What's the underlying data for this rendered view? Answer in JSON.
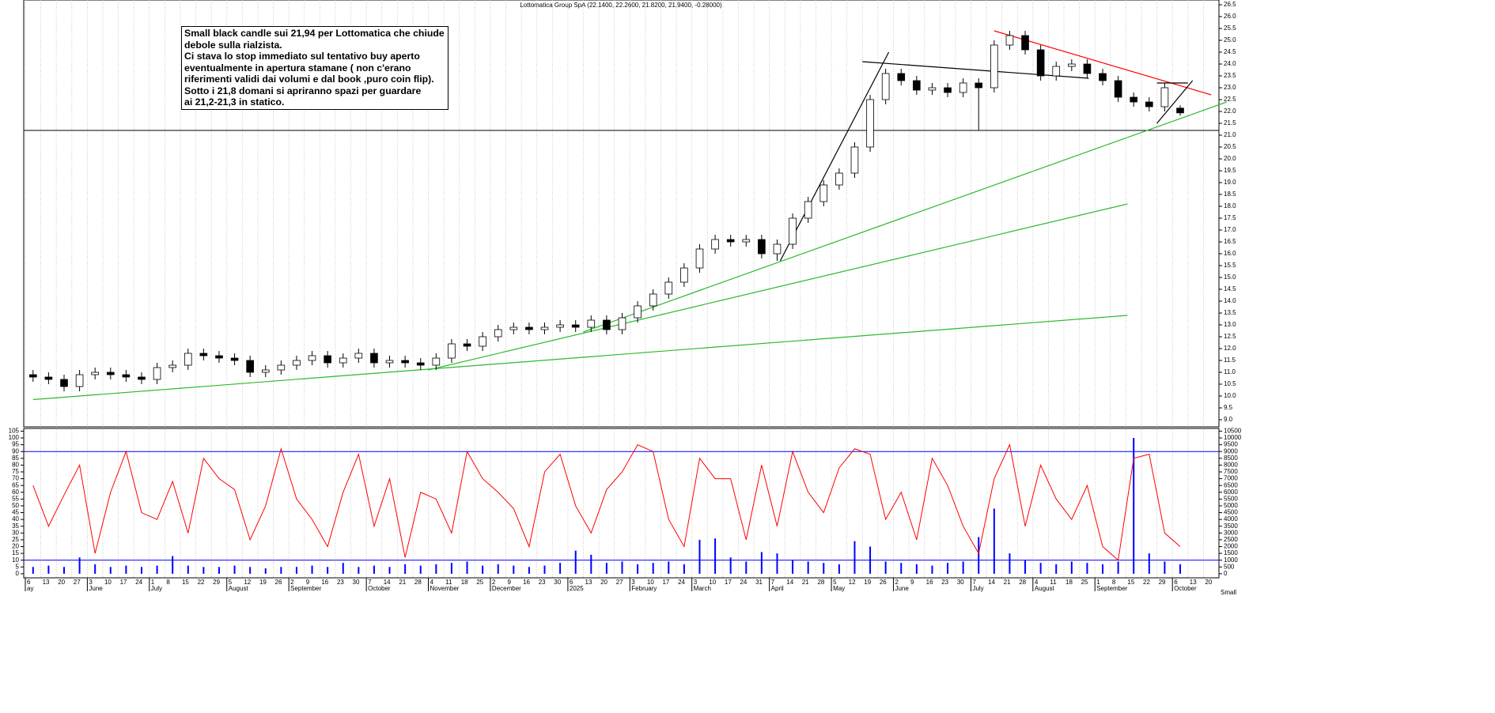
{
  "chart_data": [
    {
      "type": "candlestick",
      "title": "Lottomatica Group SpA (22.1400, 22.2600, 21.8200, 21.9400, -0.28000)",
      "annotation": [
        "Small black candle sui 21,94 per Lottomatica che chiude",
        "debole sulla rialzista.",
        "Ci stava lo stop immediato sul tentativo buy aperto",
        "eventualmente in apertura stamane ( non c'erano",
        "riferimenti validi dai volumi e dal book ,puro coin flip).",
        "Sotto i 21,8 domani si apriranno spazi per guardare",
        "ai 21,2-21,3 in statico."
      ],
      "categories": [
        "6",
        "13",
        "20",
        "27",
        "3",
        "10",
        "17",
        "24",
        "1",
        "8",
        "15",
        "22",
        "29",
        "5",
        "12",
        "19",
        "26",
        "2",
        "9",
        "16",
        "23",
        "30",
        "7",
        "14",
        "21",
        "28",
        "4",
        "11",
        "18",
        "25",
        "2",
        "9",
        "16",
        "23",
        "30",
        "6",
        "13",
        "20",
        "27",
        "3",
        "10",
        "17",
        "24",
        "3",
        "10",
        "17",
        "24",
        "31",
        "7",
        "14",
        "21",
        "28",
        "5",
        "12",
        "19",
        "26",
        "2",
        "9",
        "16",
        "23",
        "30",
        "7",
        "14",
        "21",
        "28",
        "4",
        "11",
        "18",
        "25",
        "1",
        "8",
        "15",
        "22",
        "29",
        "6",
        "13",
        "20"
      ],
      "month_ticks": [
        {
          "value": 0,
          "label": "ay"
        },
        {
          "value": 4,
          "label": "June"
        },
        {
          "value": 8,
          "label": "July"
        },
        {
          "value": 13,
          "label": "August"
        },
        {
          "value": 17,
          "label": "September"
        },
        {
          "value": 22,
          "label": "October"
        },
        {
          "value": 26,
          "label": "November"
        },
        {
          "value": 30,
          "label": "December"
        },
        {
          "value": 35,
          "label": "2025"
        },
        {
          "value": 39,
          "label": "February"
        },
        {
          "value": 43,
          "label": "March"
        },
        {
          "value": 48,
          "label": "April"
        },
        {
          "value": 52,
          "label": "May"
        },
        {
          "value": 56,
          "label": "June"
        },
        {
          "value": 61,
          "label": "July"
        },
        {
          "value": 65,
          "label": "August"
        },
        {
          "value": 69,
          "label": "September"
        },
        {
          "value": 74,
          "label": "October"
        }
      ],
      "open": [
        10.9,
        10.8,
        10.7,
        10.4,
        10.9,
        11.0,
        10.9,
        10.8,
        10.7,
        11.2,
        11.3,
        11.8,
        11.7,
        11.6,
        11.5,
        11.0,
        11.1,
        11.3,
        11.5,
        11.7,
        11.4,
        11.6,
        11.8,
        11.4,
        11.5,
        11.4,
        11.3,
        11.6,
        12.2,
        12.1,
        12.5,
        12.8,
        12.9,
        12.8,
        12.9,
        13.0,
        12.9,
        13.2,
        12.8,
        13.3,
        13.8,
        14.3,
        14.8,
        15.4,
        16.2,
        16.6,
        16.5,
        16.6,
        16.0,
        16.4,
        17.5,
        18.2,
        18.9,
        19.4,
        20.5,
        22.5,
        23.6,
        23.3,
        22.9,
        23.0,
        22.8,
        23.2,
        23.0,
        24.8,
        25.2,
        24.6,
        23.5,
        23.9,
        24.0,
        23.6,
        23.3,
        22.6,
        22.4,
        22.2,
        22.14,
        null,
        null
      ],
      "high": [
        11.1,
        11.0,
        10.9,
        11.1,
        11.2,
        11.2,
        11.1,
        11.0,
        11.4,
        11.5,
        12.0,
        12.0,
        11.9,
        11.8,
        11.7,
        11.3,
        11.5,
        11.7,
        11.9,
        11.9,
        11.8,
        12.0,
        12.0,
        11.7,
        11.7,
        11.6,
        11.8,
        12.4,
        12.4,
        12.7,
        13.0,
        13.1,
        13.1,
        13.1,
        13.2,
        13.2,
        13.4,
        13.4,
        13.5,
        14.0,
        14.5,
        15.0,
        15.6,
        16.4,
        16.8,
        16.8,
        16.8,
        16.8,
        16.6,
        17.7,
        18.4,
        19.1,
        19.6,
        20.7,
        22.7,
        23.8,
        23.8,
        23.5,
        23.2,
        23.2,
        23.4,
        23.4,
        25.0,
        25.4,
        25.4,
        24.8,
        24.1,
        24.2,
        24.2,
        23.8,
        23.5,
        22.8,
        22.6,
        23.2,
        22.26,
        null,
        null
      ],
      "low": [
        10.6,
        10.5,
        10.2,
        10.2,
        10.7,
        10.7,
        10.6,
        10.5,
        10.5,
        11.0,
        11.1,
        11.5,
        11.4,
        11.3,
        10.8,
        10.8,
        10.9,
        11.1,
        11.3,
        11.2,
        11.2,
        11.4,
        11.2,
        11.2,
        11.2,
        11.1,
        11.1,
        11.4,
        11.9,
        11.9,
        12.3,
        12.6,
        12.6,
        12.6,
        12.7,
        12.7,
        12.7,
        12.6,
        12.6,
        13.1,
        13.6,
        14.1,
        14.6,
        15.2,
        16.0,
        16.3,
        16.3,
        15.8,
        15.7,
        16.2,
        17.3,
        18.0,
        18.7,
        19.2,
        20.3,
        22.3,
        23.1,
        22.7,
        22.7,
        22.6,
        22.6,
        21.2,
        22.8,
        24.6,
        24.4,
        23.3,
        23.3,
        23.7,
        23.4,
        23.1,
        22.4,
        22.2,
        22.0,
        22.0,
        21.82,
        null,
        null
      ],
      "close": [
        10.8,
        10.7,
        10.4,
        10.9,
        11.0,
        10.9,
        10.8,
        10.7,
        11.2,
        11.3,
        11.8,
        11.7,
        11.6,
        11.5,
        11.0,
        11.1,
        11.3,
        11.5,
        11.7,
        11.4,
        11.6,
        11.8,
        11.4,
        11.5,
        11.4,
        11.3,
        11.6,
        12.2,
        12.1,
        12.5,
        12.8,
        12.9,
        12.8,
        12.9,
        13.0,
        12.9,
        13.2,
        12.8,
        13.3,
        13.8,
        14.3,
        14.8,
        15.4,
        16.2,
        16.6,
        16.5,
        16.6,
        16.0,
        16.4,
        17.5,
        18.2,
        18.9,
        19.4,
        20.5,
        22.5,
        23.6,
        23.3,
        22.9,
        23.0,
        22.8,
        23.2,
        23.0,
        24.8,
        25.2,
        24.6,
        23.5,
        23.9,
        24.0,
        23.6,
        23.3,
        22.6,
        22.4,
        22.2,
        23.0,
        21.94,
        null,
        null
      ],
      "ylim": [
        8.7,
        26.7
      ],
      "yticks": [
        {
          "value": 9,
          "label": "9.0"
        },
        9.5,
        {
          "value": 10,
          "label": "10.0"
        },
        10.5,
        {
          "value": 11,
          "label": "11.0"
        },
        11.5,
        {
          "value": 12,
          "label": "12.0"
        },
        12.5,
        {
          "value": 13,
          "label": "13.0"
        },
        13.5,
        {
          "value": 14,
          "label": "14.0"
        },
        14.5,
        {
          "value": 15,
          "label": "15.0"
        },
        15.5,
        {
          "value": 16,
          "label": "16.0"
        },
        16.5,
        {
          "value": 17,
          "label": "17.0"
        },
        17.5,
        {
          "value": 18,
          "label": "18.0"
        },
        18.5,
        {
          "value": 19,
          "label": "19.0"
        },
        19.5,
        {
          "value": 20,
          "label": "20.0"
        },
        20.5,
        {
          "value": 21,
          "label": "21.0"
        },
        21.5,
        {
          "value": 22,
          "label": "22.0"
        },
        22.5,
        {
          "value": 23,
          "label": "23.0"
        },
        23.5,
        {
          "value": 24,
          "label": "24.0"
        },
        24.5,
        {
          "value": 25,
          "label": "25.0"
        },
        25.5,
        {
          "value": 26,
          "label": "26.0"
        },
        26.5
      ],
      "hlines": [
        {
          "value": 21.2,
          "color": "#000000"
        }
      ],
      "trendlines": [
        {
          "color": "#2db82d",
          "points": [
            [
              0,
              9.85
            ],
            [
              70.6,
              13.4
            ]
          ]
        },
        {
          "color": "#2db82d",
          "points": [
            [
              25.5,
              11.1
            ],
            [
              70.6,
              18.1
            ]
          ]
        },
        {
          "color": "#2db82d",
          "points": [
            [
              35.5,
              12.7
            ],
            [
              77,
              22.4
            ]
          ]
        },
        {
          "color": "#000000",
          "points": [
            [
              48.2,
              15.7
            ],
            [
              55.2,
              24.5
            ]
          ]
        },
        {
          "color": "#000000",
          "points": [
            [
              53.5,
              24.1
            ],
            [
              68.1,
              23.4
            ]
          ]
        },
        {
          "color": "#ff0000",
          "points": [
            [
              62,
              25.4
            ],
            [
              76,
              22.7
            ]
          ]
        },
        {
          "color": "#000000",
          "points": [
            [
              72.5,
              23.2
            ],
            [
              74.5,
              23.2
            ]
          ]
        },
        {
          "color": "#000000",
          "points": [
            [
              72.5,
              21.5
            ],
            [
              74.8,
              23.3
            ]
          ]
        }
      ]
    },
    {
      "type": "line",
      "series": [
        {
          "color": "#ff0000",
          "values": [
            65,
            35,
            58,
            80,
            15,
            60,
            90,
            45,
            40,
            68,
            30,
            85,
            70,
            62,
            25,
            50,
            92,
            55,
            40,
            20,
            60,
            88,
            35,
            70,
            12,
            60,
            55,
            30,
            90,
            70,
            60,
            48,
            20,
            75,
            88,
            50,
            30,
            62,
            75,
            95,
            90,
            40,
            20,
            85,
            70,
            70,
            25,
            80,
            35,
            90,
            60,
            45,
            78,
            92,
            88,
            40,
            60,
            25,
            85,
            65,
            35,
            15,
            70,
            95,
            35,
            80,
            55,
            40,
            65,
            20,
            10,
            85,
            88,
            30,
            20,
            null,
            null
          ]
        },
        {
          "color": "#0000ff",
          "axis": "y2",
          "kind": "bar",
          "values": [
            500,
            600,
            500,
            1200,
            700,
            500,
            600,
            500,
            600,
            1300,
            600,
            500,
            500,
            600,
            500,
            400,
            500,
            500,
            600,
            500,
            800,
            500,
            600,
            500,
            700,
            600,
            700,
            800,
            900,
            600,
            700,
            600,
            500,
            600,
            800,
            1700,
            1400,
            800,
            900,
            700,
            800,
            900,
            700,
            2500,
            2600,
            1200,
            900,
            1600,
            1500,
            1000,
            900,
            800,
            700,
            2400,
            2000,
            900,
            800,
            700,
            600,
            800,
            900,
            2700,
            4800,
            1500,
            1000,
            800,
            700,
            900,
            800,
            700,
            900,
            10000,
            1500,
            900,
            700,
            null,
            null
          ]
        }
      ],
      "ylim": [
        -3,
        107
      ],
      "yticks": [
        0,
        5,
        10,
        15,
        20,
        25,
        30,
        35,
        40,
        45,
        50,
        55,
        60,
        65,
        70,
        75,
        80,
        85,
        90,
        95,
        100,
        105
      ],
      "y2lim": [
        -300,
        10700
      ],
      "y2ticks": [
        0,
        500,
        1000,
        1500,
        2000,
        2500,
        3000,
        3500,
        4000,
        4500,
        5000,
        5500,
        6000,
        6500,
        7000,
        7500,
        8000,
        8500,
        9000,
        9500,
        10000,
        10500
      ],
      "y2_label": "Small",
      "hlines": [
        {
          "value": 90,
          "color": "#0000ff"
        },
        {
          "value": 10,
          "color": "#0000ff"
        }
      ]
    }
  ]
}
